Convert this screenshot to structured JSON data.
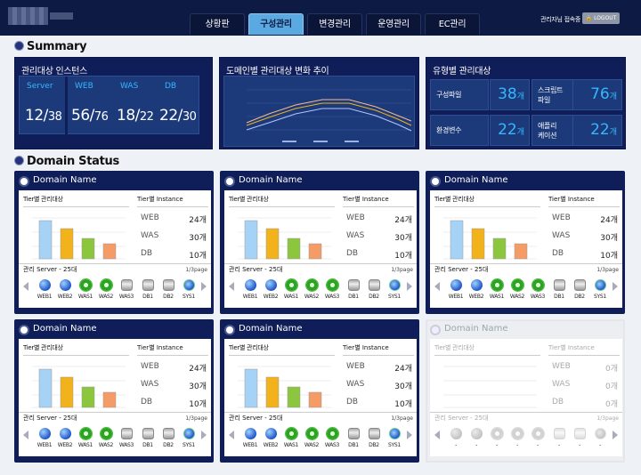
{
  "header": {
    "nav": [
      "상황판",
      "구성관리",
      "변경관리",
      "운영관리",
      "EC관리"
    ],
    "active": 1,
    "user": "관리자님 접속중",
    "logout": "LOGOUT"
  },
  "summary": {
    "title": "Summary",
    "instances": {
      "title": "관리대상 인스턴스",
      "headers": [
        "Server",
        "WEB",
        "WAS",
        "DB"
      ],
      "values": [
        [
          "12",
          "38"
        ],
        [
          "56",
          "76"
        ],
        [
          "18",
          "22"
        ],
        [
          "22",
          "30"
        ]
      ]
    },
    "trend": {
      "title": "도메인별 관리대상 변화 추이"
    },
    "types": {
      "title": "유형별 관리대상",
      "unit": "개",
      "items": [
        {
          "label": "구성파일",
          "value": "38"
        },
        {
          "label": "스크립트\n파일",
          "value": "76"
        },
        {
          "label": "환경변수",
          "value": "22"
        },
        {
          "label": "애플리\n케이션",
          "value": "22"
        }
      ]
    }
  },
  "domain_status": {
    "title": "Domain Status",
    "labels": {
      "tier_target": "Tier별 관리대상",
      "tier_instance": "Tier별 Instance",
      "page": "1/3page"
    },
    "cards": [
      {
        "name": "Domain Name",
        "server": "관리 Server - 25대",
        "web": "24개",
        "was": "30개",
        "db": "10개",
        "active": true
      },
      {
        "name": "Domain Name",
        "server": "관리 Server - 25대",
        "web": "24개",
        "was": "30개",
        "db": "10개",
        "active": true
      },
      {
        "name": "Domain Name",
        "server": "관리 Server - 25대",
        "web": "24개",
        "was": "30개",
        "db": "10개",
        "active": true
      },
      {
        "name": "Domain Name",
        "server": "관리 Server - 25대",
        "web": "24개",
        "was": "30개",
        "db": "10개",
        "active": true
      },
      {
        "name": "Domain Name",
        "server": "관리 Server - 25대",
        "web": "24개",
        "was": "30개",
        "db": "10개",
        "active": true
      },
      {
        "name": "Domain Name",
        "server": "관리 Server - 25대",
        "web": "0개",
        "was": "0개",
        "db": "0개",
        "active": false
      }
    ],
    "tiers": [
      "WEB",
      "WAS",
      "DB"
    ],
    "server_icons": [
      [
        "globe",
        "globe",
        "gear",
        "gear-db",
        "",
        "db",
        "db",
        "sys"
      ],
      [
        "globe",
        "globe",
        "gear",
        "gear",
        "gear",
        "db",
        "db",
        "sys"
      ]
    ]
  },
  "colors": {
    "navy": "#0f1d58",
    "accent": "#35b7ff",
    "web": "#a5d2f5",
    "was": "#f2b21b",
    "db": "#8cc63f",
    "extra": "#f59c66"
  },
  "chart_data": {
    "type": "bar",
    "series": [
      {
        "values": [
          850,
          670,
          450,
          330
        ]
      }
    ]
  }
}
